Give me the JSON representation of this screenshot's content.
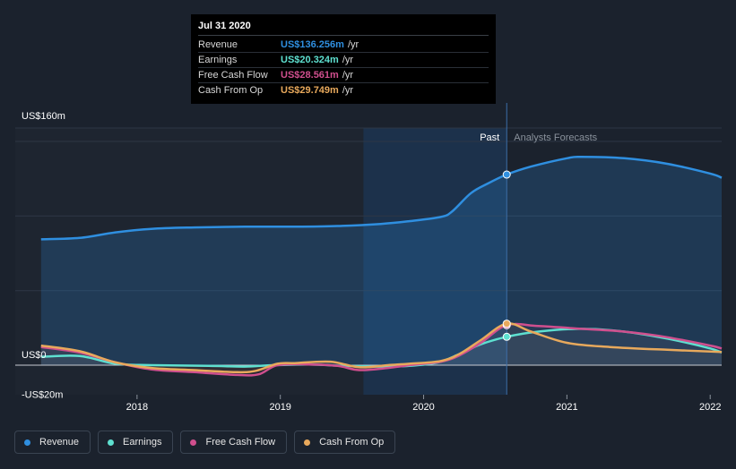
{
  "chart_data": {
    "type": "line",
    "y_axis_labels": {
      "top": "US$160m",
      "zero": "US$0",
      "bottom": "-US$20m"
    },
    "ylim": [
      -20,
      160
    ],
    "x_ticks": [
      "2018",
      "2019",
      "2020",
      "2021",
      "2022"
    ],
    "x_tick_values": [
      2018.0,
      2019.0,
      2020.0,
      2021.0,
      2022.0
    ],
    "xlim": [
      2017.15,
      2022.08
    ],
    "cursor_x": 2020.58,
    "forecast_band_start": 2019.58,
    "past_label": "Past",
    "forecast_label": "Analysts Forecasts",
    "series": [
      {
        "name": "Revenue",
        "color": "#2f8fe0",
        "fill": true,
        "points": [
          [
            2017.33,
            90
          ],
          [
            2017.6,
            91
          ],
          [
            2017.85,
            95
          ],
          [
            2018.1,
            97.5
          ],
          [
            2018.4,
            98.5
          ],
          [
            2018.75,
            99
          ],
          [
            2019.1,
            99
          ],
          [
            2019.4,
            99.5
          ],
          [
            2019.7,
            101
          ],
          [
            2019.9,
            103
          ],
          [
            2020.12,
            106
          ],
          [
            2020.2,
            110
          ],
          [
            2020.33,
            123
          ],
          [
            2020.45,
            130
          ],
          [
            2020.58,
            136.3
          ],
          [
            2020.75,
            142
          ],
          [
            2021.0,
            148
          ],
          [
            2021.1,
            149
          ],
          [
            2021.4,
            148
          ],
          [
            2021.7,
            144
          ],
          [
            2022.0,
            137
          ],
          [
            2022.08,
            134
          ]
        ]
      },
      {
        "name": "Earnings",
        "color": "#5ee0d0",
        "fill": false,
        "points": [
          [
            2017.33,
            6
          ],
          [
            2017.6,
            6.5
          ],
          [
            2017.85,
            1
          ],
          [
            2018.1,
            0
          ],
          [
            2018.5,
            -0.5
          ],
          [
            2018.75,
            -1
          ],
          [
            2018.95,
            0
          ],
          [
            2019.2,
            0.5
          ],
          [
            2019.45,
            -0.5
          ],
          [
            2019.7,
            -1
          ],
          [
            2019.9,
            -0.5
          ],
          [
            2020.1,
            2
          ],
          [
            2020.25,
            8
          ],
          [
            2020.4,
            15
          ],
          [
            2020.58,
            20.3
          ],
          [
            2020.8,
            24
          ],
          [
            2021.1,
            26
          ],
          [
            2021.4,
            24
          ],
          [
            2021.7,
            19
          ],
          [
            2022.0,
            12
          ],
          [
            2022.08,
            9
          ]
        ]
      },
      {
        "name": "Free Cash Flow",
        "color": "#d04f8e",
        "fill": false,
        "points": [
          [
            2017.33,
            13
          ],
          [
            2017.6,
            9
          ],
          [
            2017.85,
            2
          ],
          [
            2018.1,
            -3
          ],
          [
            2018.4,
            -5
          ],
          [
            2018.7,
            -7
          ],
          [
            2018.85,
            -6.5
          ],
          [
            2018.98,
            0
          ],
          [
            2019.2,
            0.5
          ],
          [
            2019.4,
            -0.5
          ],
          [
            2019.55,
            -3.5
          ],
          [
            2019.75,
            -2
          ],
          [
            2019.9,
            0
          ],
          [
            2020.12,
            2.5
          ],
          [
            2020.25,
            7
          ],
          [
            2020.4,
            16
          ],
          [
            2020.58,
            28.6
          ],
          [
            2020.8,
            28
          ],
          [
            2021.1,
            26
          ],
          [
            2021.4,
            24
          ],
          [
            2021.7,
            20
          ],
          [
            2022.0,
            14
          ],
          [
            2022.08,
            12
          ]
        ]
      },
      {
        "name": "Cash From Op",
        "color": "#e8a95c",
        "fill": false,
        "points": [
          [
            2017.33,
            14
          ],
          [
            2017.6,
            10
          ],
          [
            2017.85,
            2
          ],
          [
            2018.1,
            -2
          ],
          [
            2018.4,
            -3.5
          ],
          [
            2018.7,
            -5
          ],
          [
            2018.83,
            -4
          ],
          [
            2018.98,
            1
          ],
          [
            2019.1,
            1.5
          ],
          [
            2019.35,
            2.5
          ],
          [
            2019.55,
            -1.5
          ],
          [
            2019.75,
            0
          ],
          [
            2019.9,
            1
          ],
          [
            2020.12,
            3
          ],
          [
            2020.25,
            8
          ],
          [
            2020.4,
            18
          ],
          [
            2020.58,
            29.7
          ],
          [
            2020.75,
            24
          ],
          [
            2021.0,
            16
          ],
          [
            2021.3,
            13
          ],
          [
            2021.7,
            11
          ],
          [
            2022.08,
            9.5
          ]
        ]
      }
    ]
  },
  "tooltip": {
    "date": "Jul 31 2020",
    "rows": [
      {
        "label": "Revenue",
        "value": "US$136.256m",
        "unit": "/yr",
        "color": "#2f8fe0"
      },
      {
        "label": "Earnings",
        "value": "US$20.324m",
        "unit": "/yr",
        "color": "#5ee0d0"
      },
      {
        "label": "Free Cash Flow",
        "value": "US$28.561m",
        "unit": "/yr",
        "color": "#d04f8e"
      },
      {
        "label": "Cash From Op",
        "value": "US$29.749m",
        "unit": "/yr",
        "color": "#e8a95c"
      }
    ]
  },
  "legend": [
    {
      "label": "Revenue",
      "color": "#2f8fe0"
    },
    {
      "label": "Earnings",
      "color": "#5ee0d0"
    },
    {
      "label": "Free Cash Flow",
      "color": "#d04f8e"
    },
    {
      "label": "Cash From Op",
      "color": "#e8a95c"
    }
  ]
}
